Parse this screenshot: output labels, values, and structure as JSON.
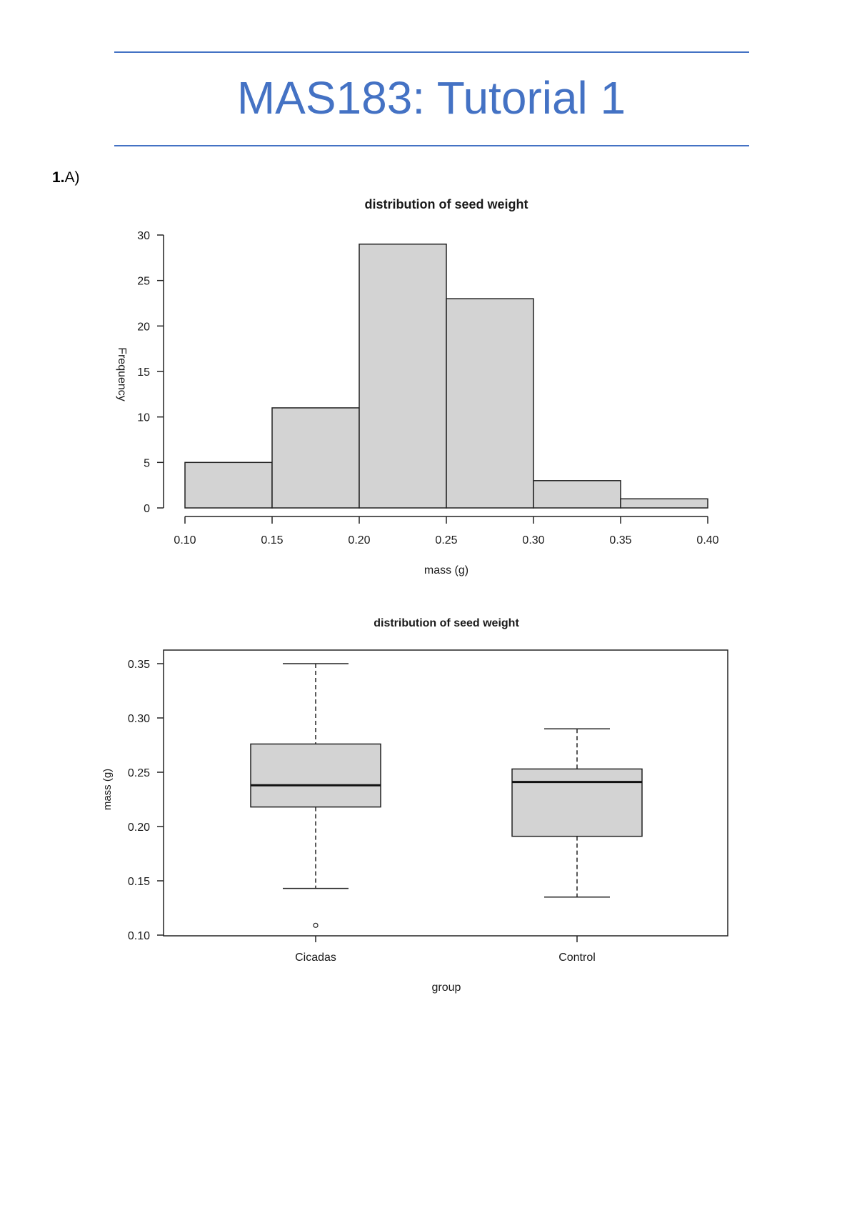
{
  "document": {
    "title": "MAS183: Tutorial 1",
    "accent_color": "#4472c4",
    "question_number": "1.",
    "question_part": "A)"
  },
  "chart_data": [
    {
      "type": "bar",
      "subtype": "histogram",
      "title": "distribution of seed weight",
      "xlabel": "mass (g)",
      "ylabel": "Frequency",
      "bins": [
        [
          0.1,
          0.15
        ],
        [
          0.15,
          0.2
        ],
        [
          0.2,
          0.25
        ],
        [
          0.25,
          0.3
        ],
        [
          0.3,
          0.35
        ],
        [
          0.35,
          0.4
        ]
      ],
      "categories": [
        "0.10-0.15",
        "0.15-0.20",
        "0.20-0.25",
        "0.25-0.30",
        "0.30-0.35",
        "0.35-0.40"
      ],
      "values": [
        5,
        11,
        29,
        23,
        3,
        1
      ],
      "x_ticks": [
        "0.10",
        "0.15",
        "0.20",
        "0.25",
        "0.30",
        "0.35",
        "0.40"
      ],
      "y_ticks": [
        "0",
        "5",
        "10",
        "15",
        "20",
        "25",
        "30"
      ],
      "xlim": [
        0.1,
        0.4
      ],
      "ylim": [
        0,
        30
      ],
      "bar_color": "#d3d3d3",
      "grid": false,
      "legend": null
    },
    {
      "type": "box",
      "title": "distribution of seed weight",
      "xlabel": "group",
      "ylabel": "mass (g)",
      "categories": [
        "Cicadas",
        "Control"
      ],
      "series": [
        {
          "name": "Cicadas",
          "whisker_low": 0.143,
          "q1": 0.218,
          "median": 0.238,
          "q3": 0.276,
          "whisker_high": 0.35,
          "outliers": [
            0.109
          ]
        },
        {
          "name": "Control",
          "whisker_low": 0.135,
          "q1": 0.191,
          "median": 0.241,
          "q3": 0.253,
          "whisker_high": 0.29,
          "outliers": []
        }
      ],
      "y_ticks": [
        "0.10",
        "0.15",
        "0.20",
        "0.25",
        "0.30",
        "0.35"
      ],
      "ylim": [
        0.1,
        0.36
      ],
      "box_color": "#d3d3d3",
      "grid": false,
      "legend": null
    }
  ]
}
